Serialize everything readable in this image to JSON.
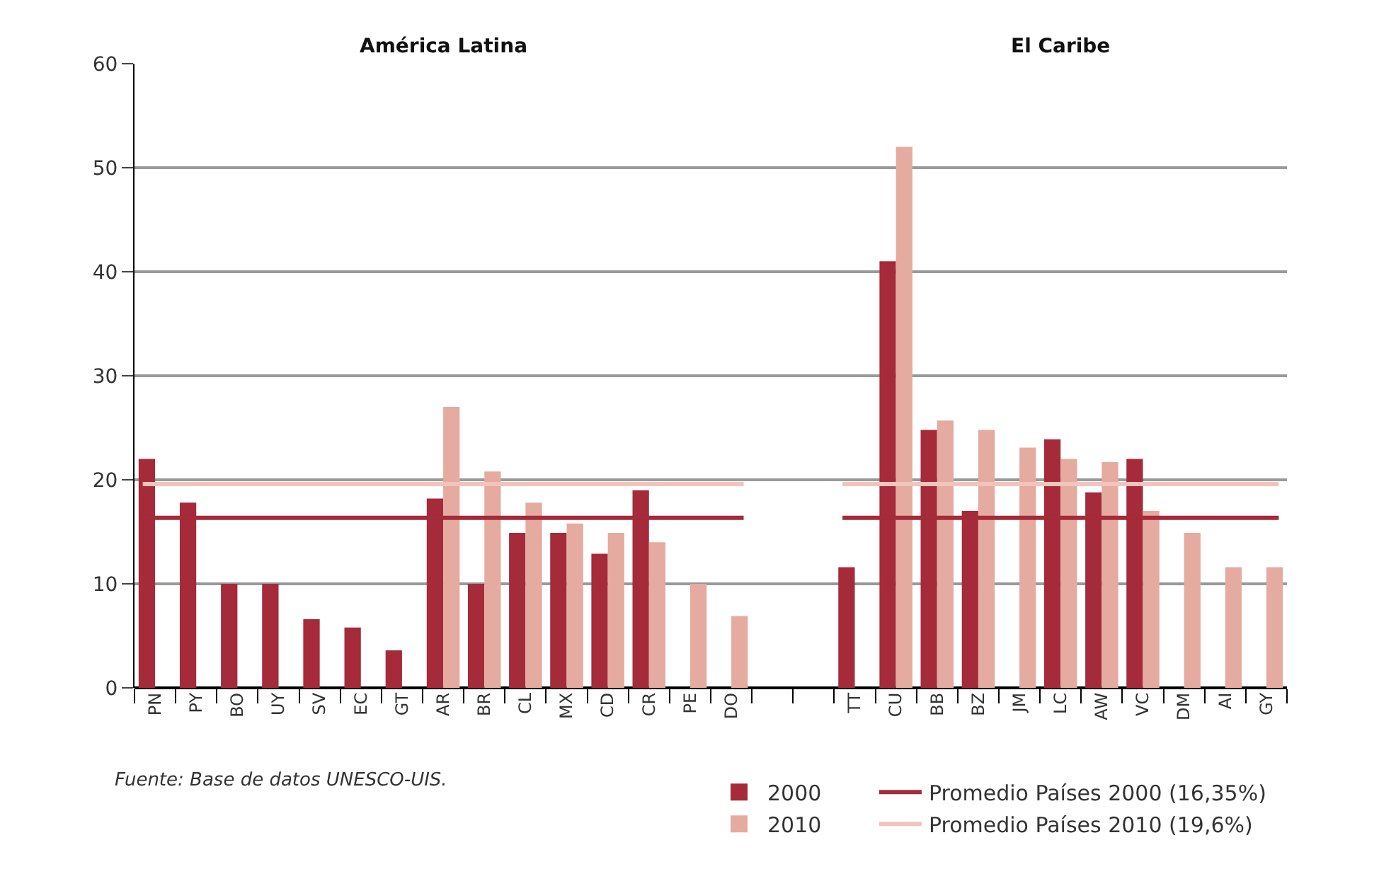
{
  "chart_data": {
    "type": "bar",
    "categories": [
      "PN",
      "PY",
      "BO",
      "UY",
      "SV",
      "EC",
      "GT",
      "AR",
      "BR",
      "CL",
      "MX",
      "CD",
      "CR",
      "PE",
      "DO",
      null,
      null,
      "TT",
      "CU",
      "BB",
      "BZ",
      "JM",
      "LC",
      "AW",
      "VC",
      "DM",
      "AI",
      "GY"
    ],
    "series": [
      {
        "name": "2000",
        "color": "#a52a3a",
        "values": [
          22,
          17.8,
          10,
          10,
          6.6,
          5.8,
          3.6,
          18.2,
          10,
          14.9,
          14.9,
          12.9,
          19,
          null,
          null,
          null,
          null,
          11.6,
          41,
          24.8,
          17,
          null,
          23.9,
          18.8,
          22,
          null,
          null,
          null
        ]
      },
      {
        "name": "2010",
        "color": "#e5aba0",
        "values": [
          null,
          null,
          null,
          null,
          null,
          null,
          null,
          27,
          20.8,
          17.8,
          15.8,
          14.9,
          14,
          10,
          6.9,
          null,
          null,
          null,
          52,
          25.7,
          24.8,
          23.1,
          22,
          21.7,
          17,
          14.9,
          11.6,
          11.6
        ]
      }
    ],
    "ref_lines": [
      {
        "axis": "y",
        "value": 16.35,
        "label": "Promedio Países 2000 (16,35%)",
        "color": "#a52a3a"
      },
      {
        "axis": "y",
        "value": 19.6,
        "label": "Promedio Países 2010 (19,6%)",
        "color": "#f2c4bb"
      }
    ],
    "annotations": [
      "América Latina",
      "El Caribe",
      "Fuente: Base de datos UNESCO-UIS."
    ],
    "ylim": [
      0,
      60
    ],
    "yticks": [
      0,
      10,
      20,
      30,
      40,
      50,
      60
    ],
    "grid": "y",
    "legend": "bottom right"
  }
}
